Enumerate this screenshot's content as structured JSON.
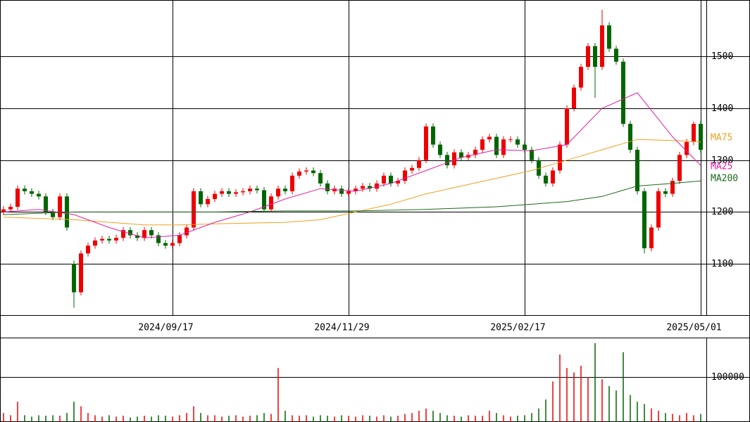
{
  "chart_data": [
    {
      "type": "candlestick",
      "up_color": "#ee0000",
      "down_color": "#006600",
      "xlim": [
        -0.5,
        99.8
      ],
      "ylim": [
        1001,
        1609
      ],
      "yticks": [
        1100,
        1200,
        1300,
        1400,
        1500
      ],
      "grid": true,
      "xticks": [
        {
          "value": 24,
          "label": "2024/09/17"
        },
        {
          "value": 49,
          "label": "2024/11/29"
        },
        {
          "value": 74,
          "label": "2025/02/17"
        },
        {
          "value": 99,
          "label": "2025/05/01"
        }
      ],
      "open": [
        1200,
        1205,
        1210,
        1245,
        1240,
        1235,
        1230,
        1200,
        1190,
        1230,
        1100,
        1045,
        1120,
        1135,
        1145,
        1148,
        1145,
        1150,
        1165,
        1155,
        1150,
        1165,
        1155,
        1140,
        1135,
        1140,
        1155,
        1170,
        1240,
        1215,
        1225,
        1235,
        1240,
        1235,
        1238,
        1240,
        1245,
        1242,
        1205,
        1230,
        1245,
        1240,
        1270,
        1278,
        1280,
        1275,
        1255,
        1240,
        1245,
        1235,
        1240,
        1245,
        1250,
        1245,
        1255,
        1270,
        1255,
        1260,
        1280,
        1285,
        1300,
        1365,
        1330,
        1310,
        1290,
        1315,
        1305,
        1310,
        1320,
        1340,
        1345,
        1310,
        1340,
        1340,
        1330,
        1320,
        1300,
        1270,
        1255,
        1280,
        1330,
        1400,
        1440,
        1480,
        1520,
        1480,
        1560,
        1515,
        1490,
        1370,
        1320,
        1240,
        1130,
        1170,
        1240,
        1235,
        1260,
        1310,
        1335,
        1370
      ],
      "high": [
        1211,
        1216,
        1251,
        1251,
        1246,
        1241,
        1236,
        1206,
        1236,
        1236,
        1106,
        1126,
        1141,
        1151,
        1154,
        1154,
        1156,
        1171,
        1171,
        1161,
        1171,
        1171,
        1161,
        1146,
        1146,
        1161,
        1176,
        1246,
        1246,
        1231,
        1241,
        1246,
        1246,
        1244,
        1246,
        1251,
        1251,
        1248,
        1236,
        1251,
        1251,
        1276,
        1284,
        1286,
        1286,
        1281,
        1261,
        1251,
        1251,
        1246,
        1251,
        1256,
        1256,
        1261,
        1276,
        1276,
        1266,
        1286,
        1291,
        1306,
        1371,
        1371,
        1336,
        1316,
        1321,
        1321,
        1316,
        1326,
        1346,
        1351,
        1351,
        1346,
        1346,
        1346,
        1336,
        1326,
        1306,
        1276,
        1286,
        1336,
        1406,
        1446,
        1486,
        1526,
        1526,
        1590,
        1566,
        1521,
        1496,
        1376,
        1326,
        1246,
        1176,
        1246,
        1246,
        1266,
        1316,
        1341,
        1375,
        1376
      ],
      "low": [
        1194,
        1199,
        1204,
        1234,
        1229,
        1224,
        1194,
        1184,
        1184,
        1164,
        1015,
        1039,
        1114,
        1129,
        1139,
        1139,
        1139,
        1144,
        1149,
        1144,
        1144,
        1149,
        1134,
        1129,
        1129,
        1134,
        1149,
        1164,
        1209,
        1209,
        1219,
        1229,
        1229,
        1229,
        1232,
        1234,
        1236,
        1199,
        1199,
        1224,
        1234,
        1234,
        1264,
        1272,
        1269,
        1249,
        1234,
        1234,
        1229,
        1229,
        1234,
        1239,
        1239,
        1239,
        1249,
        1249,
        1249,
        1254,
        1274,
        1279,
        1294,
        1324,
        1304,
        1284,
        1284,
        1299,
        1299,
        1304,
        1314,
        1334,
        1304,
        1304,
        1334,
        1324,
        1314,
        1294,
        1264,
        1249,
        1249,
        1274,
        1324,
        1394,
        1434,
        1474,
        1420,
        1474,
        1509,
        1484,
        1364,
        1314,
        1234,
        1120,
        1124,
        1164,
        1229,
        1229,
        1254,
        1304,
        1329,
        1314
      ],
      "close": [
        1205,
        1210,
        1245,
        1240,
        1235,
        1230,
        1200,
        1190,
        1230,
        1170,
        1045,
        1120,
        1135,
        1145,
        1148,
        1145,
        1150,
        1165,
        1155,
        1150,
        1165,
        1155,
        1140,
        1135,
        1140,
        1155,
        1170,
        1240,
        1215,
        1225,
        1235,
        1240,
        1235,
        1238,
        1240,
        1245,
        1242,
        1205,
        1230,
        1245,
        1240,
        1270,
        1278,
        1280,
        1275,
        1255,
        1240,
        1245,
        1235,
        1240,
        1245,
        1250,
        1245,
        1255,
        1270,
        1255,
        1260,
        1280,
        1285,
        1300,
        1365,
        1330,
        1310,
        1290,
        1315,
        1305,
        1310,
        1320,
        1340,
        1345,
        1310,
        1340,
        1340,
        1330,
        1320,
        1300,
        1270,
        1255,
        1280,
        1330,
        1400,
        1440,
        1480,
        1520,
        1480,
        1560,
        1515,
        1490,
        1370,
        1320,
        1240,
        1130,
        1170,
        1240,
        1235,
        1260,
        1310,
        1335,
        1370,
        1320
      ],
      "series": [
        {
          "name": "MA75",
          "color": "#f0a020",
          "x": [
            0,
            10,
            20,
            25,
            30,
            40,
            45,
            50,
            55,
            60,
            65,
            70,
            75,
            80,
            85,
            90,
            95,
            99
          ],
          "values": [
            1190,
            1185,
            1175,
            1175,
            1177,
            1180,
            1185,
            1200,
            1215,
            1235,
            1250,
            1265,
            1280,
            1300,
            1320,
            1340,
            1338,
            1335
          ]
        },
        {
          "name": "MA25",
          "color": "#e020a0",
          "x": [
            0,
            5,
            10,
            15,
            20,
            25,
            30,
            35,
            40,
            45,
            50,
            55,
            60,
            65,
            70,
            75,
            80,
            85,
            90,
            95,
            99
          ],
          "values": [
            1200,
            1205,
            1195,
            1170,
            1150,
            1155,
            1180,
            1200,
            1225,
            1245,
            1240,
            1255,
            1280,
            1305,
            1320,
            1318,
            1330,
            1400,
            1430,
            1345,
            1290
          ]
        },
        {
          "name": "MA200",
          "color": "#1a6a1a",
          "x": [
            0,
            10,
            20,
            30,
            40,
            50,
            60,
            70,
            80,
            85,
            90,
            95,
            99
          ],
          "values": [
            1195,
            1200,
            1200,
            1200,
            1202,
            1202,
            1205,
            1210,
            1220,
            1230,
            1250,
            1255,
            1260
          ]
        }
      ]
    },
    {
      "type": "bar",
      "ylim": [
        0,
        187500
      ],
      "yticks": [
        100000
      ],
      "grid": true,
      "values": [
        20000,
        15000,
        45000,
        15000,
        12000,
        15000,
        14000,
        15000,
        14000,
        20000,
        45000,
        35000,
        20000,
        15000,
        12000,
        15000,
        12000,
        14000,
        10000,
        12000,
        14000,
        12000,
        15000,
        14000,
        12000,
        15000,
        20000,
        35000,
        20000,
        15000,
        15000,
        12000,
        14000,
        15000,
        12000,
        14000,
        15000,
        20000,
        18000,
        120000,
        25000,
        15000,
        14000,
        15000,
        12000,
        15000,
        14000,
        12000,
        15000,
        14000,
        12000,
        15000,
        14000,
        12000,
        15000,
        12000,
        14000,
        18000,
        20000,
        25000,
        30000,
        25000,
        20000,
        15000,
        14000,
        12000,
        15000,
        14000,
        14000,
        25000,
        20000,
        15000,
        12000,
        14000,
        15000,
        20000,
        30000,
        50000,
        90000,
        150000,
        120000,
        110000,
        125000,
        100000,
        175000,
        95000,
        80000,
        70000,
        155000,
        60000,
        45000,
        40000,
        30000,
        25000,
        20000,
        18000,
        15000,
        20000,
        15000,
        18000
      ]
    }
  ]
}
